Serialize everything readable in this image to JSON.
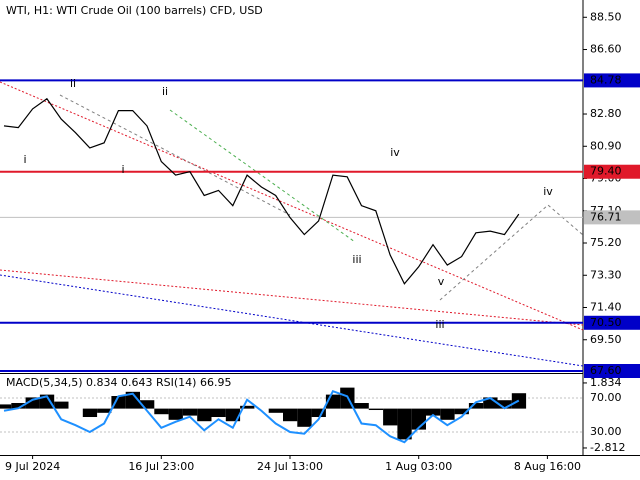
{
  "chart_data": [
    {
      "type": "line",
      "title": "WTI, H1:  WTI Crude Oil (100 barrels) CFD, USD",
      "categories": [
        null,
        null,
        "9 Jul 2024",
        null,
        null,
        null,
        null,
        null,
        null,
        null,
        null,
        "16 Jul 23:00",
        null,
        null,
        null,
        null,
        null,
        null,
        null,
        null,
        "24 Jul 13:00",
        null,
        null,
        null,
        null,
        null,
        null,
        null,
        null,
        "1 Aug 03:00",
        null,
        null,
        null,
        null,
        null,
        null,
        null,
        null,
        "8 Aug 16:00",
        null,
        null
      ],
      "values": [
        82.1,
        82.0,
        83.1,
        83.7,
        82.5,
        81.7,
        80.8,
        81.1,
        83.0,
        83.0,
        82.1,
        80.0,
        79.2,
        79.4,
        78.0,
        78.3,
        77.4,
        79.2,
        78.5,
        78.0,
        76.7,
        75.7,
        76.5,
        79.2,
        79.1,
        77.4,
        77.1,
        74.5,
        72.8,
        73.8,
        75.1,
        73.9,
        74.4,
        75.8,
        75.9,
        75.7,
        76.9,
        null,
        null,
        null,
        null
      ],
      "color": "#000000",
      "ylim": [
        67.6,
        89.4
      ],
      "yticks": [
        {
          "value": 88.5,
          "label": "88.50"
        },
        {
          "value": 86.6,
          "label": "86.60"
        },
        {
          "value": 82.8,
          "label": "82.80"
        },
        {
          "value": 80.9,
          "label": "80.90"
        },
        {
          "value": 79.0,
          "label": "79.00"
        },
        {
          "value": 77.1,
          "label": "77.10"
        },
        {
          "value": 75.2,
          "label": "75.20"
        },
        {
          "value": 73.3,
          "label": "73.30"
        },
        {
          "value": 71.4,
          "label": "71.40"
        },
        {
          "value": 69.5,
          "label": "69.50"
        }
      ],
      "levels": [
        {
          "value": 84.78,
          "label": "84.78",
          "color": "#0000c8"
        },
        {
          "value": 79.4,
          "label": "79.40",
          "color": "#e0192a"
        },
        {
          "value": 70.5,
          "label": "70.50",
          "color": "#0000c8"
        },
        {
          "value": 67.6,
          "label": "67.60",
          "color": "#0000c8"
        }
      ],
      "current": {
        "value": 76.71,
        "color": "#c0c0c0"
      },
      "annotations": [
        {
          "text": "i",
          "color": "#808080"
        },
        {
          "text": "ii",
          "color": "#808080"
        },
        {
          "text": "i",
          "color": "#4caf50"
        },
        {
          "text": "ii",
          "color": "#4caf50"
        },
        {
          "text": "iii",
          "color": "#4caf50"
        },
        {
          "text": "iv",
          "color": "#4caf50"
        },
        {
          "text": "v",
          "color": "#4caf50"
        },
        {
          "text": "iii",
          "color": "#808080"
        },
        {
          "text": "iv",
          "color": "#808080"
        }
      ]
    },
    {
      "type": "macd",
      "subtitle": "MACD(5,34,5) 0.834 0.643 RSI(14) 66.95",
      "values": [
        0.3,
        0.4,
        0.8,
        1.0,
        0.5,
        0.0,
        -0.6,
        -0.3,
        0.9,
        1.2,
        0.6,
        -0.4,
        -0.8,
        -0.5,
        -0.9,
        -0.6,
        -0.9,
        0.2,
        0.0,
        -0.3,
        -0.9,
        -1.3,
        -0.6,
        1.0,
        1.5,
        0.4,
        -0.1,
        -1.2,
        -2.2,
        -1.5,
        -0.5,
        -0.8,
        -0.4,
        0.4,
        0.8,
        0.6,
        1.1
      ],
      "color": "#000000",
      "ylim": [
        -3.1,
        2.33
      ],
      "yticks": [
        1.834,
        -2.812
      ],
      "rsi": {
        "values": [
          55,
          58,
          68,
          72,
          45,
          38,
          30,
          40,
          72,
          75,
          55,
          35,
          42,
          48,
          32,
          45,
          35,
          68,
          55,
          40,
          30,
          28,
          45,
          78,
          72,
          40,
          38,
          25,
          18,
          35,
          50,
          38,
          48,
          65,
          70,
          58,
          67
        ],
        "color": "#1e90ff",
        "axis": "y2"
      },
      "y2lim": [
        6.5,
        95.9
      ],
      "y2ticks": [
        {
          "value": 70,
          "label": "70.00"
        },
        {
          "value": 30,
          "label": "30.00"
        }
      ]
    }
  ]
}
